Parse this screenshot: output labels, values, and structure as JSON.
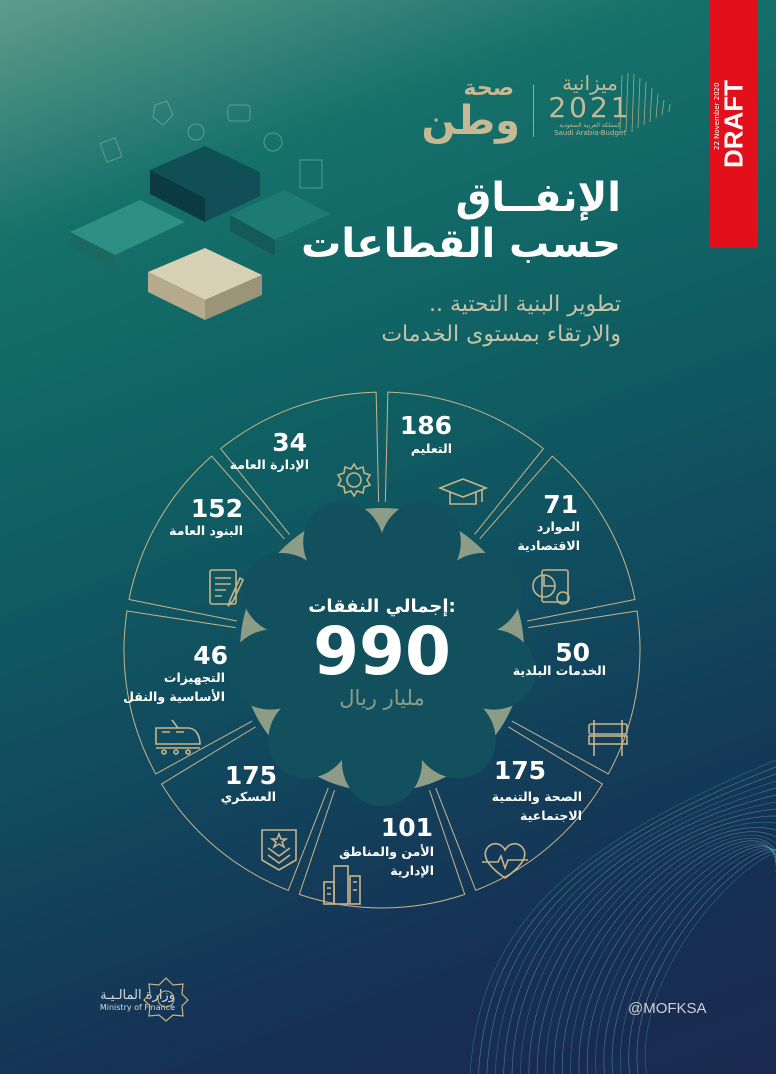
{
  "header": {
    "draft_label": "DRAFT",
    "draft_date": "22 November 2020",
    "brand_logo": {
      "line1": "صحة",
      "line2": "وطن"
    },
    "budget_logo": {
      "title": "ميزانية",
      "year": "2021",
      "arabic_sub": "المملكة العربية السعودية",
      "english_sub": "Saudi Arabia-Budget"
    }
  },
  "title": {
    "line1": "الإنفــاق",
    "line2": "حسب القطاعات"
  },
  "subtitle": {
    "line1": "تطوير البنية التحتية ..",
    "line2": "والارتقاء بمستوى الخدمات"
  },
  "total": {
    "label": "إجمالي النفقات:",
    "value": "990",
    "unit": "مليار ريال"
  },
  "sectors": [
    {
      "value": "186",
      "label": "التعليم",
      "icon": "graduation-cap-icon"
    },
    {
      "value": "71",
      "label": "الموارد الاقتصادية",
      "icon": "pie-chart-document-icon"
    },
    {
      "value": "50",
      "label": "الخدمات البلدية",
      "icon": "barrier-icon"
    },
    {
      "value": "175",
      "label": "الصحة والتنمية الاجتماعية",
      "icon": "heartbeat-icon"
    },
    {
      "value": "101",
      "label": "الأمن والمناطق الإدارية",
      "icon": "buildings-icon"
    },
    {
      "value": "175",
      "label": "العسكري",
      "icon": "military-badge-icon"
    },
    {
      "value": "46",
      "label": "التجهيزات الأساسية والنقل",
      "icon": "train-icon"
    },
    {
      "value": "152",
      "label": "البنود العامة",
      "icon": "document-pen-icon"
    },
    {
      "value": "34",
      "label": "الإدارة العامة",
      "icon": "gear-icon"
    }
  ],
  "footer": {
    "ministry_ar": "وزارة المالـيـة",
    "ministry_en": "Ministry of Finance",
    "handle": "@MOFKSA"
  },
  "colors": {
    "accent": "#e3101b",
    "sage": "#8c9c86",
    "gold": "#c8b48a",
    "navy": "#1a2a50",
    "teal": "#0f6f69"
  }
}
